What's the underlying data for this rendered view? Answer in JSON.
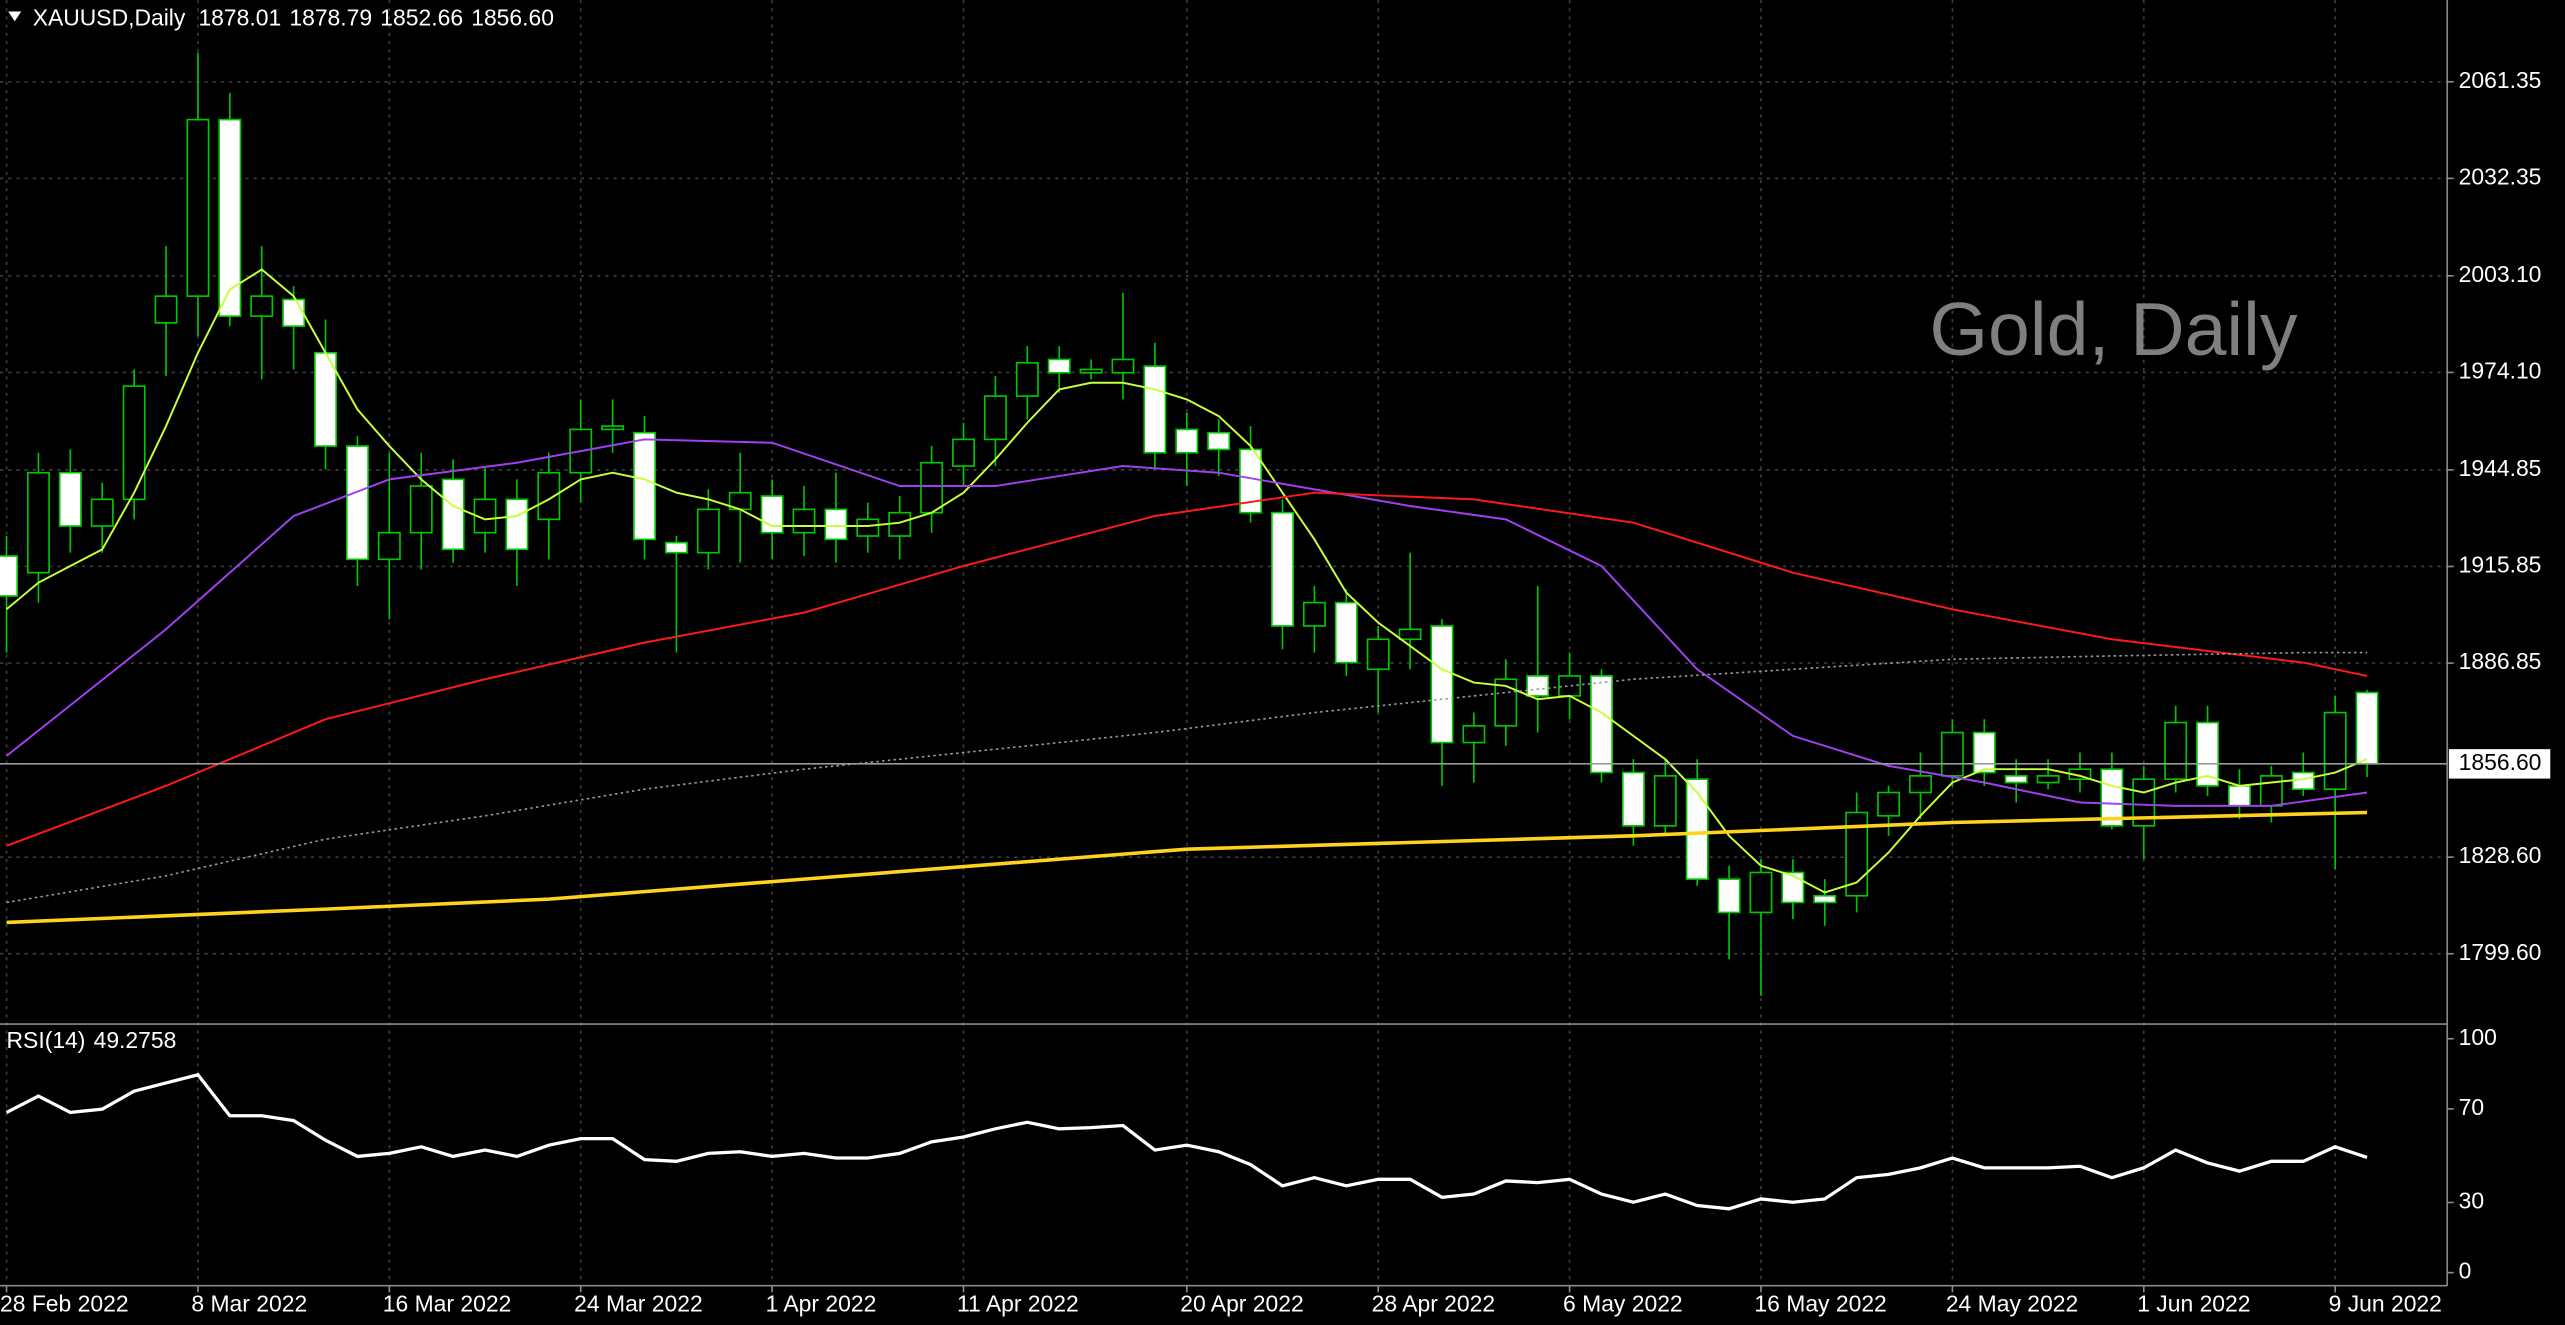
{
  "chart_data": [
    {
      "type": "candlestick",
      "title": "XAUUSD,Daily",
      "watermark": "Gold, Daily",
      "x": [
        "2022-02-28",
        "2022-03-01",
        "2022-03-02",
        "2022-03-03",
        "2022-03-04",
        "2022-03-07",
        "2022-03-08",
        "2022-03-09",
        "2022-03-10",
        "2022-03-11",
        "2022-03-14",
        "2022-03-15",
        "2022-03-16",
        "2022-03-17",
        "2022-03-18",
        "2022-03-21",
        "2022-03-22",
        "2022-03-23",
        "2022-03-24",
        "2022-03-25",
        "2022-03-28",
        "2022-03-29",
        "2022-03-30",
        "2022-03-31",
        "2022-04-01",
        "2022-04-04",
        "2022-04-05",
        "2022-04-06",
        "2022-04-07",
        "2022-04-08",
        "2022-04-11",
        "2022-04-12",
        "2022-04-13",
        "2022-04-14",
        "2022-04-15",
        "2022-04-18",
        "2022-04-19",
        "2022-04-20",
        "2022-04-21",
        "2022-04-22",
        "2022-04-25",
        "2022-04-26",
        "2022-04-27",
        "2022-04-28",
        "2022-04-29",
        "2022-05-02",
        "2022-05-03",
        "2022-05-04",
        "2022-05-05",
        "2022-05-06",
        "2022-05-09",
        "2022-05-10",
        "2022-05-11",
        "2022-05-12",
        "2022-05-13",
        "2022-05-16",
        "2022-05-17",
        "2022-05-18",
        "2022-05-19",
        "2022-05-20",
        "2022-05-23",
        "2022-05-24",
        "2022-05-25",
        "2022-05-26",
        "2022-05-27",
        "2022-05-30",
        "2022-05-31",
        "2022-06-01",
        "2022-06-02",
        "2022-06-03",
        "2022-06-06",
        "2022-06-07",
        "2022-06-08",
        "2022-06-09",
        "2022-06-10"
      ],
      "open": [
        1919,
        1914,
        1944,
        1928,
        1936,
        1989,
        1997,
        2050,
        1991,
        1996,
        1980,
        1952,
        1918,
        1926,
        1942,
        1926,
        1936,
        1930,
        1944,
        1957,
        1956,
        1923,
        1920,
        1933,
        1937,
        1926,
        1933,
        1925,
        1925,
        1932,
        1946,
        1954,
        1967,
        1978,
        1974,
        1974,
        1976,
        1957,
        1956,
        1951,
        1932,
        1898,
        1905,
        1885,
        1894,
        1898,
        1863,
        1868,
        1883,
        1877,
        1883,
        1854,
        1838,
        1852,
        1822,
        1812,
        1824,
        1817,
        1817,
        1841,
        1848,
        1853,
        1866,
        1853,
        1851,
        1852,
        1855,
        1838,
        1852,
        1869,
        1850,
        1844,
        1854,
        1849,
        1878.01
      ],
      "high": [
        1925,
        1950,
        1951,
        1941,
        1975,
        2012,
        2070,
        2058,
        2012,
        2000,
        1990,
        1955,
        1950,
        1950,
        1948,
        1946,
        1942,
        1950,
        1966,
        1966,
        1961,
        1925,
        1939,
        1950,
        1942,
        1940,
        1944,
        1935,
        1937,
        1952,
        1959,
        1973,
        1982,
        1982,
        1978,
        1998,
        1983,
        1962,
        1960,
        1958,
        1936,
        1910,
        1909,
        1898,
        1920,
        1900,
        1872,
        1888,
        1910,
        1890,
        1885,
        1858,
        1858,
        1858,
        1826,
        1828,
        1828,
        1822,
        1848,
        1850,
        1860,
        1870,
        1870,
        1858,
        1858,
        1860,
        1860,
        1856,
        1874,
        1874,
        1855,
        1856,
        1860,
        1877,
        1878.79
      ],
      "low": [
        1890,
        1905,
        1920,
        1920,
        1930,
        1973,
        1985,
        1988,
        1972,
        1975,
        1945,
        1910,
        1900,
        1915,
        1917,
        1920,
        1910,
        1918,
        1935,
        1950,
        1918,
        1890,
        1915,
        1917,
        1918,
        1919,
        1917,
        1920,
        1918,
        1926,
        1940,
        1946,
        1960,
        1968,
        1972,
        1966,
        1945,
        1940,
        1943,
        1929,
        1891,
        1890,
        1883,
        1872,
        1885,
        1850,
        1851,
        1862,
        1866,
        1870,
        1851,
        1832,
        1835,
        1820,
        1798,
        1787,
        1810,
        1808,
        1812,
        1835,
        1840,
        1850,
        1850,
        1845,
        1849,
        1848,
        1837,
        1828,
        1848,
        1847,
        1840,
        1839,
        1847,
        1825,
        1852.66
      ],
      "close": [
        1907,
        1944,
        1928,
        1936,
        1970,
        1997,
        2050,
        1991,
        1997,
        1988,
        1952,
        1918,
        1926,
        1940,
        1921,
        1936,
        1921,
        1944,
        1957,
        1958,
        1924,
        1920,
        1933,
        1938,
        1926,
        1933,
        1924,
        1930,
        1932,
        1947,
        1954,
        1967,
        1977,
        1974,
        1975,
        1978,
        1950,
        1950,
        1951,
        1932,
        1898,
        1905,
        1887,
        1894,
        1897,
        1863,
        1868,
        1882,
        1877,
        1883,
        1854,
        1838,
        1853,
        1822,
        1812,
        1824,
        1815,
        1815,
        1842,
        1848,
        1853,
        1866,
        1854,
        1851,
        1853,
        1855,
        1838,
        1852,
        1869,
        1850,
        1844,
        1853,
        1849,
        1872,
        1856.6
      ],
      "bull_color": "#000000",
      "bear_color": "#ffffff",
      "outline_color": "#00c800",
      "last_price": {
        "value": 1856.6,
        "label": "1856.60"
      },
      "lines": [
        {
          "color": "#c8ff3c",
          "style": "solid",
          "values": [
            1903,
            1911,
            1916,
            1921,
            1938,
            1958,
            1980,
            1999,
            2005,
            1997,
            1980,
            1963,
            1952,
            1942,
            1934,
            1930,
            1931,
            1936,
            1942,
            1944,
            1942,
            1938,
            1936,
            1933,
            1928,
            1928,
            1928,
            1928,
            1929,
            1932,
            1938,
            1948,
            1959,
            1969,
            1971,
            1971,
            1969,
            1966,
            1961,
            1952,
            1938,
            1924,
            1908,
            1899,
            1892,
            1885,
            1881,
            1880,
            1876,
            1877,
            1872,
            1865,
            1858,
            1848,
            1835,
            1826,
            1823,
            1818,
            1821,
            1830,
            1841,
            1851,
            1855,
            1855,
            1855,
            1853,
            1850,
            1848,
            1851,
            1853,
            1850,
            1851,
            1852,
            1854,
            1858
          ]
        },
        {
          "color": "#a040f0",
          "style": "solid",
          "x": [
            "2022-02-28",
            "2022-03-07",
            "2022-03-11",
            "2022-03-16",
            "2022-03-22",
            "2022-03-28",
            "2022-04-01",
            "2022-04-07",
            "2022-04-12",
            "2022-04-18",
            "2022-04-21",
            "2022-04-26",
            "2022-04-29",
            "2022-05-04",
            "2022-05-09",
            "2022-05-12",
            "2022-05-17",
            "2022-05-20",
            "2022-05-25",
            "2022-05-30",
            "2022-06-02",
            "2022-06-07",
            "2022-06-10"
          ],
          "values": [
            1859,
            1897,
            1931,
            1942,
            1947,
            1954,
            1953,
            1940,
            1940,
            1946,
            1944,
            1939,
            1934,
            1930,
            1916,
            1885,
            1865,
            1856,
            1851,
            1845,
            1844,
            1844,
            1848
          ]
        },
        {
          "color": "#ff1a1a",
          "style": "solid",
          "x": [
            "2022-02-28",
            "2022-03-07",
            "2022-03-14",
            "2022-03-21",
            "2022-03-28",
            "2022-04-04",
            "2022-04-11",
            "2022-04-19",
            "2022-04-26",
            "2022-05-03",
            "2022-05-10",
            "2022-05-17",
            "2022-05-24",
            "2022-05-31",
            "2022-06-08",
            "2022-06-10"
          ],
          "values": [
            1832,
            1850,
            1870,
            1882,
            1893,
            1902,
            1916,
            1931,
            1938,
            1936,
            1929,
            1914,
            1903,
            1894,
            1887,
            1883
          ]
        },
        {
          "color": "#9a9a9a",
          "style": "dotted",
          "x": [
            "2022-02-28",
            "2022-03-07",
            "2022-03-14",
            "2022-03-21",
            "2022-03-28",
            "2022-04-04",
            "2022-04-11",
            "2022-04-19",
            "2022-04-26",
            "2022-05-03",
            "2022-05-10",
            "2022-05-17",
            "2022-05-24",
            "2022-05-31",
            "2022-06-08",
            "2022-06-10"
          ],
          "values": [
            1815,
            1823,
            1834,
            1841,
            1849,
            1855,
            1860,
            1866,
            1872,
            1877,
            1882,
            1885,
            1888,
            1889,
            1890,
            1890
          ]
        },
        {
          "color": "#ffd21e",
          "style": "bold",
          "x": [
            "2022-02-28",
            "2022-03-07",
            "2022-03-14",
            "2022-03-23",
            "2022-04-04",
            "2022-04-20",
            "2022-05-10",
            "2022-05-24",
            "2022-06-10"
          ],
          "values": [
            1809,
            1811,
            1813,
            1816,
            1822,
            1831,
            1835,
            1839,
            1842
          ]
        }
      ],
      "ylim": [
        1779.0,
        2085.9
      ],
      "yticks": [
        {
          "value": 1799.6,
          "label": "1799.60"
        },
        {
          "value": 1828.6,
          "label": "1828.60"
        },
        1886.85,
        1915.85,
        1944.85,
        {
          "value": 1974.1,
          "label": "1974.10"
        },
        {
          "value": 2003.1,
          "label": "2003.10"
        },
        2032.35,
        2061.35
      ],
      "xticks": [
        {
          "value": "2022-02-28",
          "label": "28 Feb 2022"
        },
        {
          "value": "2022-03-08",
          "label": "8 Mar 2022"
        },
        {
          "value": "2022-03-16",
          "label": "16 Mar 2022"
        },
        {
          "value": "2022-03-24",
          "label": "24 Mar 2022"
        },
        {
          "value": "2022-04-01",
          "label": "1 Apr 2022"
        },
        {
          "value": "2022-04-11",
          "label": "11 Apr 2022"
        },
        {
          "value": "2022-04-20",
          "label": "20 Apr 2022"
        },
        {
          "value": "2022-04-28",
          "label": "28 Apr 2022"
        },
        {
          "value": "2022-05-06",
          "label": "6 May 2022"
        },
        {
          "value": "2022-05-16",
          "label": "16 May 2022"
        },
        {
          "value": "2022-05-24",
          "label": "24 May 2022"
        },
        {
          "value": "2022-06-01",
          "label": "1 Jun 2022"
        },
        {
          "value": "2022-06-09",
          "label": "9 Jun 2022"
        }
      ],
      "grid": true
    },
    {
      "type": "line",
      "title": "RSI(14)",
      "color": "#ffffff",
      "values": [
        68.5,
        75.5,
        68.5,
        69.9,
        77.6,
        81.1,
        84.6,
        67.1,
        67.1,
        65.0,
        56.6,
        49.7,
        51.0,
        53.8,
        49.7,
        52.4,
        49.7,
        54.5,
        57.3,
        57.3,
        48.3,
        47.6,
        51.0,
        51.7,
        49.7,
        51.0,
        49.0,
        49.0,
        51.0,
        55.9,
        58.0,
        61.5,
        64.3,
        61.5,
        62.0,
        62.9,
        52.4,
        54.5,
        51.7,
        46.2,
        37.1,
        40.6,
        37.1,
        39.9,
        39.9,
        32.2,
        33.6,
        39.2,
        38.5,
        39.9,
        33.6,
        30.1,
        33.6,
        28.7,
        27.3,
        31.5,
        30.1,
        31.5,
        40.6,
        42.0,
        44.8,
        49.0,
        44.8,
        44.8,
        44.8,
        45.5,
        40.6,
        44.8,
        52.4,
        46.9,
        43.4,
        47.6,
        47.6,
        53.8,
        49.2758
      ],
      "ylim": [
        -4.9,
        105.6
      ],
      "yticks": [
        0,
        30,
        70,
        100
      ]
    }
  ]
}
